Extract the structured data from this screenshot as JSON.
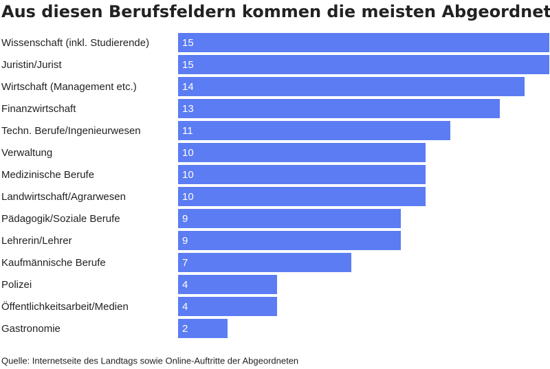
{
  "chart_data": {
    "type": "bar",
    "orientation": "horizontal",
    "title": "Aus diesen Berufsfeldern kommen die meisten Abgeordneten",
    "source": "Quelle: Internetseite des Landtags sowie Online-Auftritte der Abgeordneten",
    "categories": [
      "Wissenschaft (inkl. Studierende)",
      "Juristin/Jurist",
      "Wirtschaft (Management etc.)",
      "Finanzwirtschaft",
      "Techn. Berufe/Ingenieurwesen",
      "Verwaltung",
      "Medizinische Berufe",
      "Landwirtschaft/Agrarwesen",
      "Pädagogik/Soziale Berufe",
      "Lehrerin/Lehrer",
      "Kaufmännische Berufe",
      "Polizei",
      "Öffentlichkeitsarbeit/Medien",
      "Gastronomie"
    ],
    "values": [
      15,
      15,
      14,
      13,
      11,
      10,
      10,
      10,
      9,
      9,
      7,
      4,
      4,
      2
    ],
    "color": "#5b7cf2",
    "xlim": [
      0,
      15
    ]
  }
}
